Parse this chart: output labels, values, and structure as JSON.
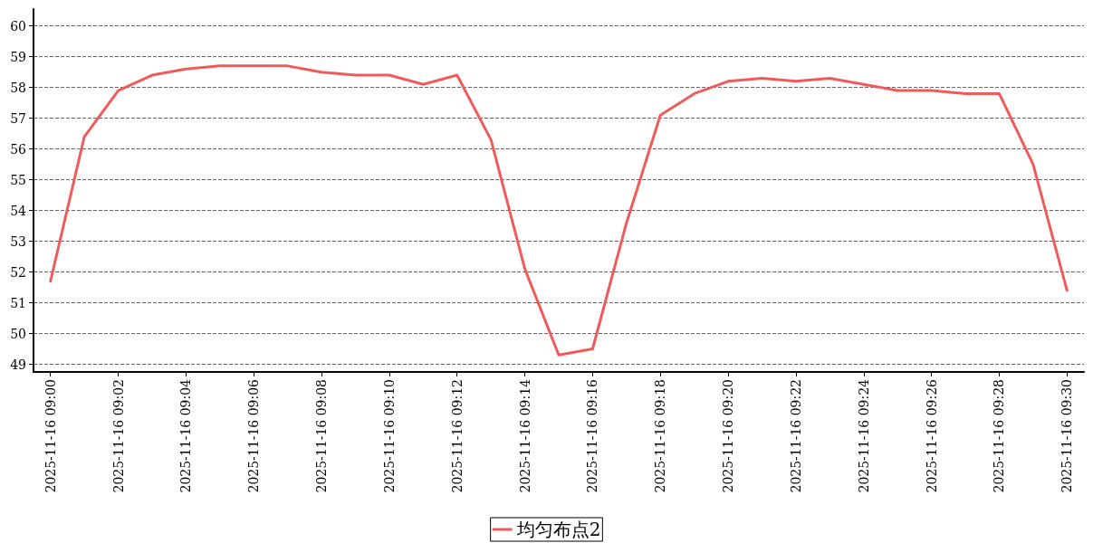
{
  "chart_data": {
    "type": "line",
    "categories": [
      "2025-11-16 09:00",
      null,
      "2025-11-16 09:02",
      null,
      "2025-11-16 09:04",
      null,
      "2025-11-16 09:06",
      null,
      "2025-11-16 09:08",
      null,
      "2025-11-16 09:10",
      null,
      "2025-11-16 09:12",
      null,
      "2025-11-16 09:14",
      null,
      "2025-11-16 09:16",
      null,
      "2025-11-16 09:18",
      null,
      "2025-11-16 09:20",
      null,
      "2025-11-16 09:22",
      null,
      "2025-11-16 09:24",
      null,
      "2025-11-16 09:26",
      null,
      "2025-11-16 09:28",
      null,
      "2025-11-16 09:30"
    ],
    "series": [
      {
        "name": "均匀布点2",
        "color": "#ef5b5b",
        "values": [
          51.7,
          56.4,
          57.9,
          58.4,
          58.6,
          58.7,
          58.7,
          58.7,
          58.5,
          58.4,
          58.4,
          58.1,
          58.4,
          56.3,
          52.1,
          49.3,
          49.5,
          53.6,
          57.1,
          57.8,
          58.2,
          58.3,
          58.2,
          58.3,
          58.1,
          57.9,
          57.9,
          57.8,
          57.8,
          55.5,
          51.4
        ]
      }
    ],
    "ylim": [
      48.75,
      60.55
    ],
    "yticks": [
      49,
      50,
      51,
      52,
      53,
      54,
      55,
      56,
      57,
      58,
      59,
      60
    ],
    "grid": "y",
    "legend": "bottom",
    "marker": "none",
    "line_style": "solid"
  }
}
